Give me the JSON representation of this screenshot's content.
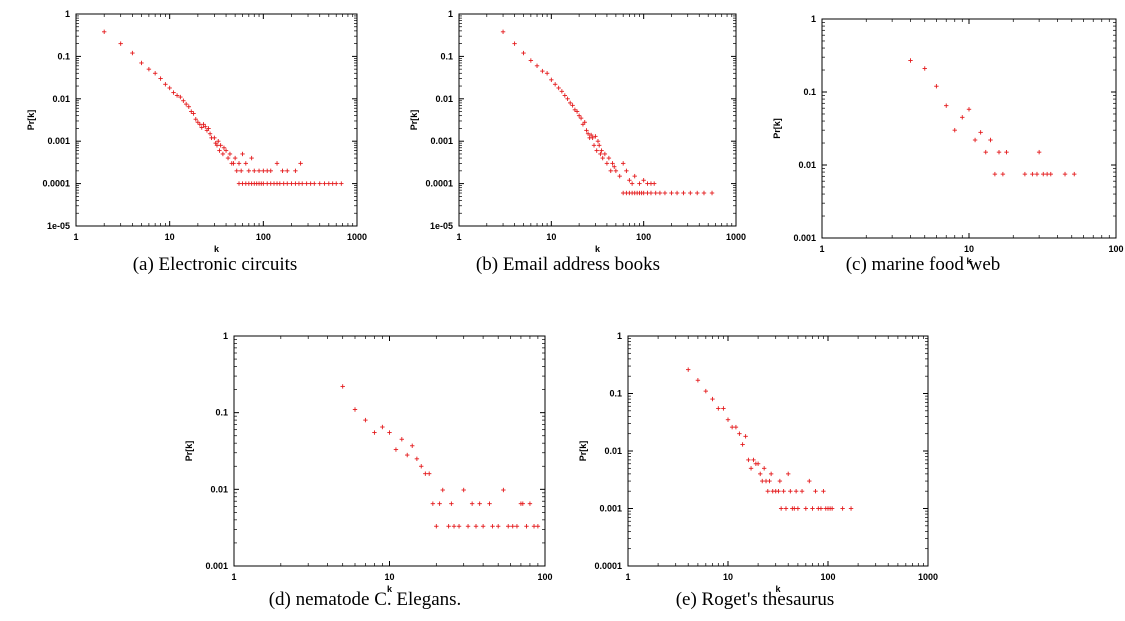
{
  "chart_data": [
    {
      "type": "scatter",
      "caption": "(a)  Electronic circuits",
      "xlabel": "k",
      "ylabel": "Pr[k]",
      "xscale": "log",
      "yscale": "log",
      "xlim": [
        1,
        1000
      ],
      "ylim": [
        1e-05,
        1
      ],
      "x_ticks": [
        "1",
        "10",
        "100",
        "1000"
      ],
      "y_ticks": [
        "1",
        "0.1",
        "0.01",
        "0.001",
        "0.0001",
        "1e-05"
      ],
      "color": "#e41a1c",
      "grid": false,
      "points": [
        [
          2,
          0.38
        ],
        [
          3,
          0.2
        ],
        [
          4,
          0.12
        ],
        [
          5,
          0.07
        ],
        [
          6,
          0.05
        ],
        [
          7,
          0.04
        ],
        [
          8,
          0.03
        ],
        [
          9,
          0.022
        ],
        [
          10,
          0.018
        ],
        [
          11,
          0.014
        ],
        [
          12,
          0.012
        ],
        [
          13,
          0.011
        ],
        [
          14,
          0.009
        ],
        [
          15,
          0.0075
        ],
        [
          16,
          0.0065
        ],
        [
          17,
          0.005
        ],
        [
          18,
          0.0045
        ],
        [
          19,
          0.0033
        ],
        [
          20,
          0.0028
        ],
        [
          21,
          0.0025
        ],
        [
          22,
          0.0021
        ],
        [
          23,
          0.0025
        ],
        [
          24,
          0.0022
        ],
        [
          25,
          0.0018
        ],
        [
          26,
          0.002
        ],
        [
          27,
          0.0015
        ],
        [
          28,
          0.0012
        ],
        [
          30,
          0.0012
        ],
        [
          31,
          0.0009
        ],
        [
          32,
          0.0008
        ],
        [
          33,
          0.001
        ],
        [
          34,
          0.0006
        ],
        [
          35,
          0.0008
        ],
        [
          37,
          0.0005
        ],
        [
          38,
          0.0007
        ],
        [
          40,
          0.0006
        ],
        [
          42,
          0.0004
        ],
        [
          44,
          0.0005
        ],
        [
          46,
          0.0003
        ],
        [
          48,
          0.0003
        ],
        [
          50,
          0.0004
        ],
        [
          52,
          0.0002
        ],
        [
          55,
          0.0003
        ],
        [
          58,
          0.0002
        ],
        [
          60,
          0.0005
        ],
        [
          65,
          0.0003
        ],
        [
          70,
          0.0002
        ],
        [
          75,
          0.0004
        ],
        [
          80,
          0.0002
        ],
        [
          90,
          0.0002
        ],
        [
          100,
          0.0002
        ],
        [
          110,
          0.0002
        ],
        [
          120,
          0.0002
        ],
        [
          140,
          0.0003
        ],
        [
          160,
          0.0002
        ],
        [
          180,
          0.0002
        ],
        [
          220,
          0.0002
        ],
        [
          250,
          0.0003
        ],
        [
          55,
          0.0001
        ],
        [
          60,
          0.0001
        ],
        [
          65,
          0.0001
        ],
        [
          70,
          0.0001
        ],
        [
          75,
          0.0001
        ],
        [
          80,
          0.0001
        ],
        [
          85,
          0.0001
        ],
        [
          90,
          0.0001
        ],
        [
          95,
          0.0001
        ],
        [
          100,
          0.0001
        ],
        [
          110,
          0.0001
        ],
        [
          120,
          0.0001
        ],
        [
          130,
          0.0001
        ],
        [
          140,
          0.0001
        ],
        [
          150,
          0.0001
        ],
        [
          165,
          0.0001
        ],
        [
          180,
          0.0001
        ],
        [
          200,
          0.0001
        ],
        [
          220,
          0.0001
        ],
        [
          240,
          0.0001
        ],
        [
          260,
          0.0001
        ],
        [
          290,
          0.0001
        ],
        [
          320,
          0.0001
        ],
        [
          350,
          0.0001
        ],
        [
          400,
          0.0001
        ],
        [
          450,
          0.0001
        ],
        [
          500,
          0.0001
        ],
        [
          550,
          0.0001
        ],
        [
          600,
          0.0001
        ],
        [
          680,
          0.0001
        ]
      ]
    },
    {
      "type": "scatter",
      "caption": "(b)  Email address books",
      "xlabel": "k",
      "ylabel": "Pr[k]",
      "xscale": "log",
      "yscale": "log",
      "xlim": [
        1,
        1000
      ],
      "ylim": [
        1e-05,
        1
      ],
      "x_ticks": [
        "1",
        "10",
        "100",
        "1000"
      ],
      "y_ticks": [
        "1",
        "0.1",
        "0.01",
        "0.001",
        "0.0001",
        "1e-05"
      ],
      "color": "#e41a1c",
      "grid": false,
      "points": [
        [
          3,
          0.38
        ],
        [
          4,
          0.2
        ],
        [
          5,
          0.12
        ],
        [
          6,
          0.08
        ],
        [
          7,
          0.06
        ],
        [
          8,
          0.045
        ],
        [
          9,
          0.04
        ],
        [
          10,
          0.028
        ],
        [
          11,
          0.022
        ],
        [
          12,
          0.018
        ],
        [
          13,
          0.015
        ],
        [
          14,
          0.012
        ],
        [
          15,
          0.01
        ],
        [
          16,
          0.008
        ],
        [
          17,
          0.007
        ],
        [
          18,
          0.0055
        ],
        [
          19,
          0.005
        ],
        [
          20,
          0.004
        ],
        [
          21,
          0.0035
        ],
        [
          22,
          0.0025
        ],
        [
          23,
          0.0028
        ],
        [
          24,
          0.0018
        ],
        [
          25,
          0.0015
        ],
        [
          26,
          0.0012
        ],
        [
          27,
          0.0014
        ],
        [
          28,
          0.0012
        ],
        [
          29,
          0.0008
        ],
        [
          30,
          0.0013
        ],
        [
          31,
          0.0006
        ],
        [
          32,
          0.001
        ],
        [
          33,
          0.0008
        ],
        [
          34,
          0.0005
        ],
        [
          35,
          0.0006
        ],
        [
          36,
          0.0004
        ],
        [
          38,
          0.0005
        ],
        [
          40,
          0.0003
        ],
        [
          42,
          0.0004
        ],
        [
          44,
          0.0002
        ],
        [
          46,
          0.0003
        ],
        [
          48,
          0.00025
        ],
        [
          50,
          0.0002
        ],
        [
          55,
          0.00015
        ],
        [
          60,
          0.0003
        ],
        [
          65,
          0.0002
        ],
        [
          70,
          0.00012
        ],
        [
          75,
          0.0001
        ],
        [
          80,
          0.00015
        ],
        [
          90,
          0.0001
        ],
        [
          100,
          0.00012
        ],
        [
          110,
          0.0001
        ],
        [
          120,
          0.0001
        ],
        [
          130,
          0.0001
        ],
        [
          60,
          6e-05
        ],
        [
          65,
          6e-05
        ],
        [
          70,
          6e-05
        ],
        [
          75,
          6e-05
        ],
        [
          80,
          6e-05
        ],
        [
          85,
          6e-05
        ],
        [
          90,
          6e-05
        ],
        [
          95,
          6e-05
        ],
        [
          100,
          6e-05
        ],
        [
          110,
          6e-05
        ],
        [
          120,
          6e-05
        ],
        [
          135,
          6e-05
        ],
        [
          150,
          6e-05
        ],
        [
          170,
          6e-05
        ],
        [
          200,
          6e-05
        ],
        [
          230,
          6e-05
        ],
        [
          270,
          6e-05
        ],
        [
          320,
          6e-05
        ],
        [
          380,
          6e-05
        ],
        [
          450,
          6e-05
        ],
        [
          550,
          6e-05
        ]
      ]
    },
    {
      "type": "scatter",
      "caption": "(c)  marine food web",
      "xlabel": "k",
      "ylabel": "Pr[k]",
      "xscale": "log",
      "yscale": "log",
      "xlim": [
        1,
        100
      ],
      "ylim": [
        0.001,
        1
      ],
      "x_ticks": [
        "1",
        "10",
        "100"
      ],
      "y_ticks": [
        "1",
        "0.1",
        "0.01",
        "0.001"
      ],
      "color": "#e41a1c",
      "grid": false,
      "points": [
        [
          4,
          0.27
        ],
        [
          5,
          0.21
        ],
        [
          6,
          0.12
        ],
        [
          7,
          0.065
        ],
        [
          8,
          0.03
        ],
        [
          9,
          0.045
        ],
        [
          10,
          0.058
        ],
        [
          11,
          0.022
        ],
        [
          12,
          0.028
        ],
        [
          13,
          0.015
        ],
        [
          14,
          0.022
        ],
        [
          15,
          0.0075
        ],
        [
          16,
          0.015
        ],
        [
          17,
          0.0075
        ],
        [
          18,
          0.015
        ],
        [
          24,
          0.0075
        ],
        [
          27,
          0.0075
        ],
        [
          29,
          0.0075
        ],
        [
          30,
          0.015
        ],
        [
          32,
          0.0075
        ],
        [
          34,
          0.0075
        ],
        [
          36,
          0.0075
        ],
        [
          45,
          0.0075
        ],
        [
          52,
          0.0075
        ]
      ]
    },
    {
      "type": "scatter",
      "caption": "(d)  nematode C. Elegans.",
      "xlabel": "k",
      "ylabel": "Pr[k]",
      "xscale": "log",
      "yscale": "log",
      "xlim": [
        1,
        100
      ],
      "ylim": [
        0.001,
        1
      ],
      "x_ticks": [
        "1",
        "10",
        "100"
      ],
      "y_ticks": [
        "1",
        "0.1",
        "0.01",
        "0.001"
      ],
      "color": "#e41a1c",
      "grid": false,
      "points": [
        [
          5,
          0.22
        ],
        [
          6,
          0.11
        ],
        [
          7,
          0.08
        ],
        [
          8,
          0.055
        ],
        [
          9,
          0.065
        ],
        [
          10,
          0.055
        ],
        [
          11,
          0.033
        ],
        [
          12,
          0.045
        ],
        [
          13,
          0.028
        ],
        [
          14,
          0.037
        ],
        [
          15,
          0.025
        ],
        [
          16,
          0.02
        ],
        [
          17,
          0.016
        ],
        [
          18,
          0.016
        ],
        [
          19,
          0.0065
        ],
        [
          20,
          0.0033
        ],
        [
          21,
          0.0065
        ],
        [
          22,
          0.0098
        ],
        [
          24,
          0.0033
        ],
        [
          25,
          0.0065
        ],
        [
          26,
          0.0033
        ],
        [
          28,
          0.0033
        ],
        [
          30,
          0.0098
        ],
        [
          32,
          0.0033
        ],
        [
          34,
          0.0065
        ],
        [
          36,
          0.0033
        ],
        [
          38,
          0.0065
        ],
        [
          40,
          0.0033
        ],
        [
          44,
          0.0065
        ],
        [
          46,
          0.0033
        ],
        [
          50,
          0.0033
        ],
        [
          54,
          0.0098
        ],
        [
          58,
          0.0033
        ],
        [
          62,
          0.0033
        ],
        [
          66,
          0.0033
        ],
        [
          70,
          0.0065
        ],
        [
          72,
          0.0065
        ],
        [
          76,
          0.0033
        ],
        [
          80,
          0.0065
        ],
        [
          85,
          0.0033
        ],
        [
          90,
          0.0033
        ]
      ]
    },
    {
      "type": "scatter",
      "caption": "(e)  Roget's thesaurus",
      "xlabel": "k",
      "ylabel": "Pr[k]",
      "xscale": "log",
      "yscale": "log",
      "xlim": [
        1,
        1000
      ],
      "ylim": [
        0.0001,
        1
      ],
      "x_ticks": [
        "1",
        "10",
        "100",
        "1000"
      ],
      "y_ticks": [
        "1",
        "0.1",
        "0.01",
        "0.001",
        "0.0001"
      ],
      "color": "#e41a1c",
      "grid": false,
      "points": [
        [
          4,
          0.26
        ],
        [
          5,
          0.17
        ],
        [
          6,
          0.11
        ],
        [
          7,
          0.08
        ],
        [
          8,
          0.055
        ],
        [
          9,
          0.055
        ],
        [
          10,
          0.035
        ],
        [
          11,
          0.026
        ],
        [
          12,
          0.026
        ],
        [
          13,
          0.02
        ],
        [
          14,
          0.013
        ],
        [
          15,
          0.018
        ],
        [
          16,
          0.007
        ],
        [
          17,
          0.005
        ],
        [
          18,
          0.007
        ],
        [
          19,
          0.006
        ],
        [
          20,
          0.006
        ],
        [
          21,
          0.004
        ],
        [
          22,
          0.003
        ],
        [
          23,
          0.005
        ],
        [
          24,
          0.003
        ],
        [
          25,
          0.002
        ],
        [
          26,
          0.003
        ],
        [
          27,
          0.004
        ],
        [
          28,
          0.002
        ],
        [
          30,
          0.002
        ],
        [
          32,
          0.002
        ],
        [
          33,
          0.003
        ],
        [
          34,
          0.001
        ],
        [
          36,
          0.002
        ],
        [
          38,
          0.001
        ],
        [
          40,
          0.004
        ],
        [
          42,
          0.002
        ],
        [
          44,
          0.001
        ],
        [
          46,
          0.001
        ],
        [
          48,
          0.002
        ],
        [
          50,
          0.001
        ],
        [
          55,
          0.002
        ],
        [
          60,
          0.001
        ],
        [
          65,
          0.003
        ],
        [
          70,
          0.001
        ],
        [
          75,
          0.002
        ],
        [
          80,
          0.001
        ],
        [
          85,
          0.001
        ],
        [
          90,
          0.002
        ],
        [
          95,
          0.001
        ],
        [
          100,
          0.001
        ],
        [
          105,
          0.001
        ],
        [
          110,
          0.001
        ],
        [
          140,
          0.001
        ],
        [
          170,
          0.001
        ]
      ]
    }
  ]
}
